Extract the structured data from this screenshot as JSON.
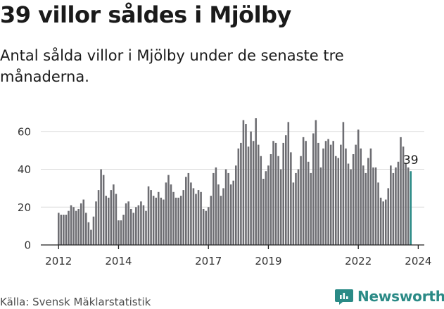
{
  "title": "39 villor såldes i Mjölby",
  "subtitle": "Antal sålda villor i Mjölby under de senaste tre månaderna.",
  "source": "Källa: Svensk Mäklarstatistik",
  "brand": "Newsworthy",
  "colors": {
    "bar": "#6d6d72",
    "highlight": "#2a8a86",
    "grid": "#dcdcdc",
    "axis": "#222222"
  },
  "chart_data": {
    "type": "bar",
    "title": "39 villor såldes i Mjölby",
    "xlabel": "",
    "ylabel": "",
    "ylim": [
      0,
      67
    ],
    "yticks": [
      0,
      20,
      40,
      60
    ],
    "x_start": "2012-01",
    "xticks": [
      {
        "index": 0,
        "label": "2012"
      },
      {
        "index": 24,
        "label": "2014"
      },
      {
        "index": 60,
        "label": "2017"
      },
      {
        "index": 84,
        "label": "2019"
      },
      {
        "index": 120,
        "label": "2022"
      },
      {
        "index": 144,
        "label": "2024"
      }
    ],
    "highlight_label": "39",
    "values": [
      17,
      16,
      16,
      16,
      18,
      21,
      20,
      18,
      19,
      22,
      24,
      17,
      12,
      8,
      15,
      23,
      29,
      40,
      37,
      26,
      25,
      29,
      32,
      27,
      13,
      13,
      16,
      22,
      23,
      19,
      17,
      20,
      21,
      23,
      21,
      18,
      31,
      29,
      26,
      25,
      28,
      25,
      24,
      33,
      37,
      32,
      28,
      25,
      25,
      26,
      29,
      36,
      38,
      33,
      30,
      27,
      29,
      28,
      19,
      18,
      20,
      26,
      38,
      41,
      32,
      26,
      30,
      40,
      38,
      32,
      34,
      42,
      51,
      54,
      66,
      64,
      52,
      60,
      55,
      67,
      53,
      47,
      35,
      39,
      42,
      48,
      55,
      54,
      47,
      40,
      54,
      58,
      65,
      49,
      33,
      38,
      40,
      47,
      57,
      55,
      44,
      38,
      59,
      66,
      54,
      41,
      51,
      55,
      56,
      53,
      55,
      47,
      46,
      53,
      65,
      51,
      43,
      40,
      48,
      53,
      61,
      51,
      42,
      38,
      46,
      51,
      41,
      41,
      33,
      25,
      23,
      24,
      30,
      42,
      38,
      41,
      44,
      57,
      52,
      43,
      41,
      39
    ]
  }
}
